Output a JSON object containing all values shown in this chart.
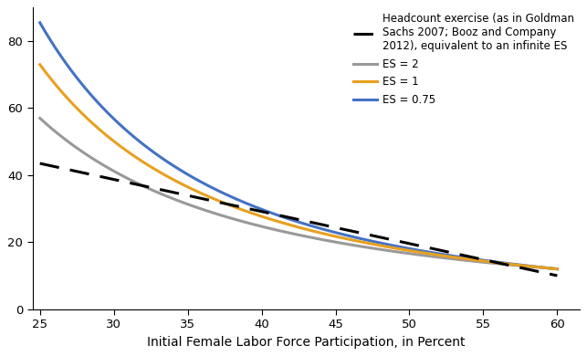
{
  "x_start": 25,
  "x_end": 60,
  "xlabel": "Initial Female Labor Force Participation, in Percent",
  "xlim": [
    24.5,
    61.5
  ],
  "ylim": [
    0,
    90
  ],
  "xticks": [
    25,
    30,
    35,
    40,
    45,
    50,
    55,
    60
  ],
  "yticks": [
    0,
    20,
    40,
    60,
    80
  ],
  "background_color": "#ffffff",
  "series": {
    "headcount": {
      "color": "#000000",
      "linewidth": 2.2,
      "label": "Headcount exercise (as in Goldman\nSachs 2007; Booz and Company\n2012), equivalent to an infinite ES",
      "y_at_25": 43.5,
      "y_at_60": 10.0
    },
    "es2": {
      "color": "#999999",
      "linewidth": 2.2,
      "label": "ES = 2",
      "y_at_25": 57.0,
      "y_at_60": 12.0,
      "curvature": 1.8
    },
    "es1": {
      "color": "#E8A020",
      "linewidth": 2.2,
      "label": "ES = 1",
      "y_at_25": 73.0,
      "y_at_60": 12.0,
      "curvature": 2.2
    },
    "es075": {
      "color": "#4472C4",
      "linewidth": 2.2,
      "label": "ES = 0.75",
      "y_at_25": 85.5,
      "y_at_60": 12.0,
      "curvature": 2.5
    }
  },
  "legend_fontsize": 8.5,
  "axis_fontsize": 10,
  "tick_fontsize": 9.5
}
